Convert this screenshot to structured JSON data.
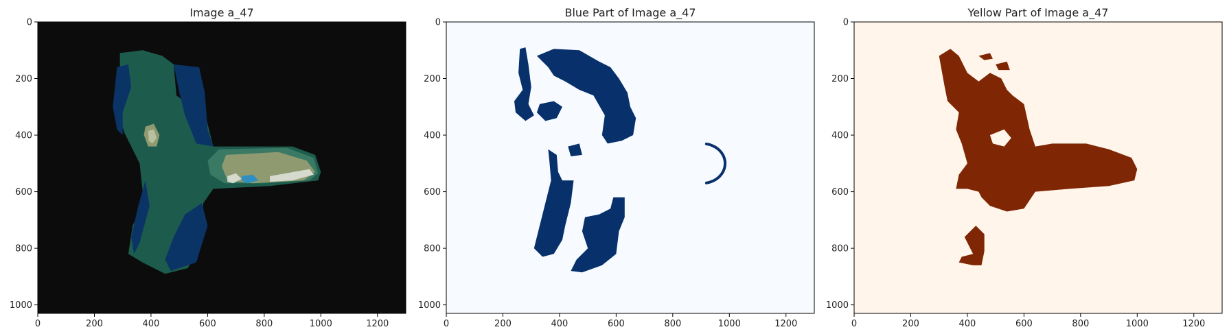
{
  "chart_data": [
    {
      "type": "image",
      "title": "Image a_47",
      "xlim": [
        0,
        1300
      ],
      "ylim": [
        1030,
        0
      ],
      "xticks": [
        0,
        200,
        400,
        600,
        800,
        1000,
        1200
      ],
      "yticks": [
        0,
        200,
        400,
        600,
        800,
        1000
      ],
      "background": "#0c0c0c",
      "colors": {
        "green": "#1d5c4c",
        "teal": "#3a7a64",
        "navy": "#0a3466",
        "olive": "#8f9a70",
        "pale": "#b8c0a0",
        "light": "#d6d9cd",
        "blue": "#2f8fc0"
      }
    },
    {
      "type": "image",
      "title": "Blue Part of Image a_47",
      "xlim": [
        0,
        1300
      ],
      "ylim": [
        1030,
        0
      ],
      "xticks": [
        0,
        200,
        400,
        600,
        800,
        1000,
        1200
      ],
      "yticks": [
        0,
        200,
        400,
        600,
        800,
        1000
      ],
      "background": "#f7fbff",
      "fill": "#08306b"
    },
    {
      "type": "image",
      "title": "Yellow Part of Image a_47",
      "xlim": [
        0,
        1300
      ],
      "ylim": [
        1030,
        0
      ],
      "xticks": [
        0,
        200,
        400,
        600,
        800,
        1000,
        1200
      ],
      "yticks": [
        0,
        200,
        400,
        600,
        800,
        1000
      ],
      "background": "#fff5eb",
      "fill": "#7f2704"
    }
  ]
}
